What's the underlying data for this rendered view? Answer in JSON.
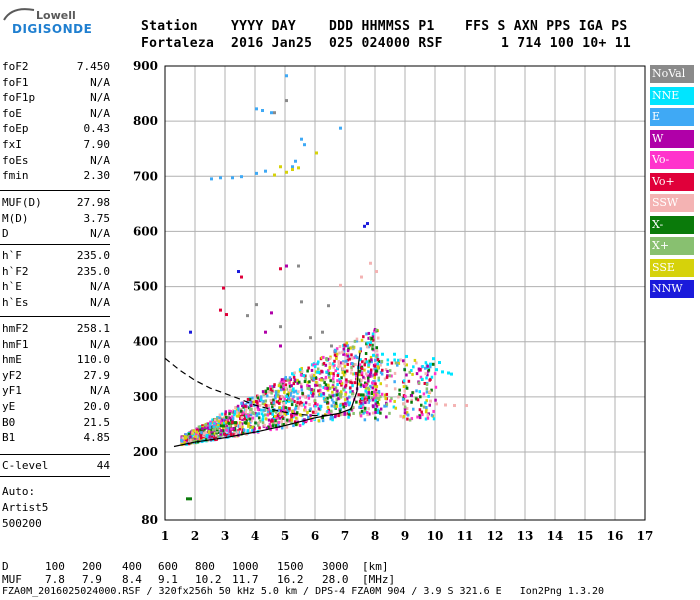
{
  "logo": {
    "line1": "Lowell",
    "line2": "DIGISONDE"
  },
  "header": {
    "labels": [
      "Station",
      "YYYY DAY",
      "DDD HHMMSS P1",
      "FFS S AXN PPS IGA PS"
    ],
    "values": [
      "Fortaleza",
      "2016 Jan25",
      "025 024000 RSF",
      "1 714 100 10+ 11"
    ]
  },
  "params_group1": [
    {
      "name": "foF2",
      "value": "7.450"
    },
    {
      "name": "foF1",
      "value": "N/A"
    },
    {
      "name": "foF1p",
      "value": "N/A"
    },
    {
      "name": "foE",
      "value": "N/A"
    },
    {
      "name": "foEp",
      "value": "0.43"
    },
    {
      "name": "fxI",
      "value": "7.90"
    },
    {
      "name": "foEs",
      "value": "N/A"
    },
    {
      "name": "fmin",
      "value": "2.30"
    }
  ],
  "params_group2": [
    {
      "name": "MUF(D)",
      "value": "27.98"
    },
    {
      "name": "M(D)",
      "value": "3.75"
    },
    {
      "name": "D",
      "value": "N/A"
    }
  ],
  "params_group3": [
    {
      "name": "h`F",
      "value": "235.0"
    },
    {
      "name": "h`F2",
      "value": "235.0"
    },
    {
      "name": "h`E",
      "value": "N/A"
    },
    {
      "name": "h`Es",
      "value": "N/A"
    }
  ],
  "params_group4": [
    {
      "name": "hmF2",
      "value": "258.1"
    },
    {
      "name": "hmF1",
      "value": "N/A"
    },
    {
      "name": "hmE",
      "value": "110.0"
    },
    {
      "name": "yF2",
      "value": "27.9"
    },
    {
      "name": "yF1",
      "value": "N/A"
    },
    {
      "name": "yE",
      "value": "20.0"
    },
    {
      "name": "B0",
      "value": "21.5"
    },
    {
      "name": "B1",
      "value": "4.85"
    }
  ],
  "params_group5": [
    {
      "name": "C-level",
      "value": "44"
    }
  ],
  "auto": {
    "line1": "Auto:",
    "line2": "Artist5",
    "line3": "500200"
  },
  "legend": [
    {
      "label": "NoVal",
      "color": "#8a8a8a",
      "text_color": "#ffffff"
    },
    {
      "label": "NNE",
      "color": "#00e5ff",
      "text_color": "#ffffff"
    },
    {
      "label": "E",
      "color": "#3fa9f5",
      "text_color": "#ffffff"
    },
    {
      "label": "W",
      "color": "#b000a8",
      "text_color": "#ffffff"
    },
    {
      "label": "Vo-",
      "color": "#ff33cc",
      "text_color": "#ffffff"
    },
    {
      "label": "Vo+",
      "color": "#e0003a",
      "text_color": "#ffffff"
    },
    {
      "label": "SSW",
      "color": "#f4b3b3",
      "text_color": "#ffffff"
    },
    {
      "label": "X-",
      "color": "#0a7a0a",
      "text_color": "#ffffff"
    },
    {
      "label": "X+",
      "color": "#88c070",
      "text_color": "#ffffff"
    },
    {
      "label": "SSE",
      "color": "#d6d20a",
      "text_color": "#ffffff"
    },
    {
      "label": "NNW",
      "color": "#1a1adb",
      "text_color": "#ffffff"
    }
  ],
  "footer": {
    "d_label": "D",
    "d_values": [
      "100",
      "200",
      "400",
      "600",
      "800",
      "1000",
      "1500",
      "3000",
      "[km]"
    ],
    "muf_label": "MUF",
    "muf_values": [
      "7.8",
      "7.9",
      "8.4",
      "9.1",
      "10.2",
      "11.7",
      "16.2",
      "28.0",
      "[MHz]"
    ],
    "file_line": "FZA0M_2016025024000.RSF / 320fx256h 50 kHz 5.0 km / DPS-4 FZA0M 904 / 3.9 S 321.6 E   Ion2Png 1.3.20"
  },
  "chart_data": {
    "type": "scatter",
    "x_ticks": [
      1,
      2,
      3,
      4,
      5,
      6,
      7,
      8,
      9,
      10,
      11,
      12,
      13,
      14,
      15,
      16,
      17
    ],
    "y_ticks": [
      80,
      200,
      300,
      400,
      500,
      600,
      700,
      800,
      900
    ],
    "xlim": [
      1,
      17
    ],
    "ylim": [
      80,
      900
    ],
    "grid": true,
    "legend_position": "right",
    "series": [
      {
        "name": "E",
        "color": "#3fa9f5",
        "points": [
          [
            4.0,
            825
          ],
          [
            4.2,
            822
          ],
          [
            4.5,
            818
          ],
          [
            5.0,
            885
          ],
          [
            5.5,
            770
          ],
          [
            5.6,
            760
          ],
          [
            3.2,
            700
          ],
          [
            3.5,
            702
          ],
          [
            4.0,
            708
          ],
          [
            4.3,
            712
          ],
          [
            5.2,
            720
          ],
          [
            6.8,
            790
          ],
          [
            2.5,
            698
          ],
          [
            2.8,
            700
          ],
          [
            5.3,
            730
          ]
        ]
      },
      {
        "name": "SSE",
        "color": "#d6d20a",
        "points": [
          [
            5.2,
            715
          ],
          [
            5.4,
            718
          ],
          [
            4.6,
            705
          ],
          [
            5.0,
            710
          ],
          [
            6.0,
            745
          ],
          [
            4.8,
            720
          ]
        ]
      },
      {
        "name": "SSW",
        "color": "#f4b3b3",
        "points": [
          [
            7.8,
            545
          ],
          [
            8.0,
            530
          ],
          [
            7.5,
            520
          ],
          [
            6.8,
            505
          ],
          [
            10.0,
            290
          ],
          [
            10.3,
            288
          ],
          [
            10.6,
            287
          ],
          [
            11.0,
            287
          ],
          [
            9.8,
            295
          ]
        ]
      },
      {
        "name": "NNW",
        "color": "#1a1adb",
        "points": [
          [
            7.7,
            617
          ],
          [
            7.6,
            612
          ],
          [
            1.8,
            420
          ],
          [
            3.4,
            530
          ]
        ]
      },
      {
        "name": "Vo+",
        "color": "#e0003a",
        "points": [
          [
            2.9,
            500
          ],
          [
            2.8,
            460
          ],
          [
            3.0,
            452
          ],
          [
            3.5,
            520
          ],
          [
            4.8,
            535
          ]
        ]
      },
      {
        "name": "W",
        "color": "#b000a8",
        "points": [
          [
            4.5,
            455
          ],
          [
            5.0,
            540
          ],
          [
            4.3,
            420
          ],
          [
            4.8,
            395
          ]
        ]
      },
      {
        "name": "NNE",
        "color": "#00e5ff",
        "points": [
          [
            7.9,
            378
          ],
          [
            8.2,
            380
          ],
          [
            8.6,
            380
          ],
          [
            9.8,
            362
          ],
          [
            10.0,
            352
          ],
          [
            10.2,
            348
          ],
          [
            10.4,
            346
          ],
          [
            10.5,
            344
          ],
          [
            9.9,
            372
          ],
          [
            10.1,
            365
          ],
          [
            9.0,
            376
          ]
        ]
      },
      {
        "name": "X-",
        "color": "#0a7a0a",
        "points": [
          [
            1.8,
            120
          ],
          [
            1.7,
            120
          ],
          [
            2.9,
            250
          ],
          [
            3.3,
            256
          ]
        ]
      },
      {
        "name": "X+",
        "color": "#88c070",
        "points": [
          [
            6.3,
            297
          ],
          [
            6.8,
            304
          ],
          [
            7.2,
            308
          ]
        ]
      },
      {
        "name": "NoVal",
        "color": "#8a8a8a",
        "points": [
          [
            5.0,
            840
          ],
          [
            4.6,
            818
          ],
          [
            3.7,
            450
          ],
          [
            4.0,
            470
          ],
          [
            5.5,
            475
          ],
          [
            4.8,
            430
          ],
          [
            5.8,
            410
          ],
          [
            6.2,
            420
          ],
          [
            6.5,
            395
          ],
          [
            5.4,
            540
          ],
          [
            6.4,
            468
          ]
        ]
      }
    ],
    "curves": [
      {
        "style": "dashed",
        "points": [
          [
            1.0,
            370
          ],
          [
            1.5,
            348
          ],
          [
            2.0,
            330
          ],
          [
            2.5,
            316
          ],
          [
            3.0,
            306
          ],
          [
            3.5,
            296
          ],
          [
            4.0,
            285
          ],
          [
            4.5,
            278
          ],
          [
            5.0,
            272
          ],
          [
            5.5,
            268
          ],
          [
            6.0,
            266
          ],
          [
            6.6,
            267
          ]
        ]
      },
      {
        "style": "solid",
        "points": [
          [
            1.3,
            210
          ],
          [
            2.0,
            218
          ],
          [
            3.0,
            226
          ],
          [
            4.0,
            236
          ],
          [
            5.0,
            248
          ],
          [
            6.0,
            262
          ],
          [
            6.8,
            270
          ],
          [
            7.2,
            278
          ],
          [
            7.4,
            310
          ],
          [
            7.45,
            360
          ],
          [
            7.5,
            380
          ]
        ]
      }
    ]
  }
}
